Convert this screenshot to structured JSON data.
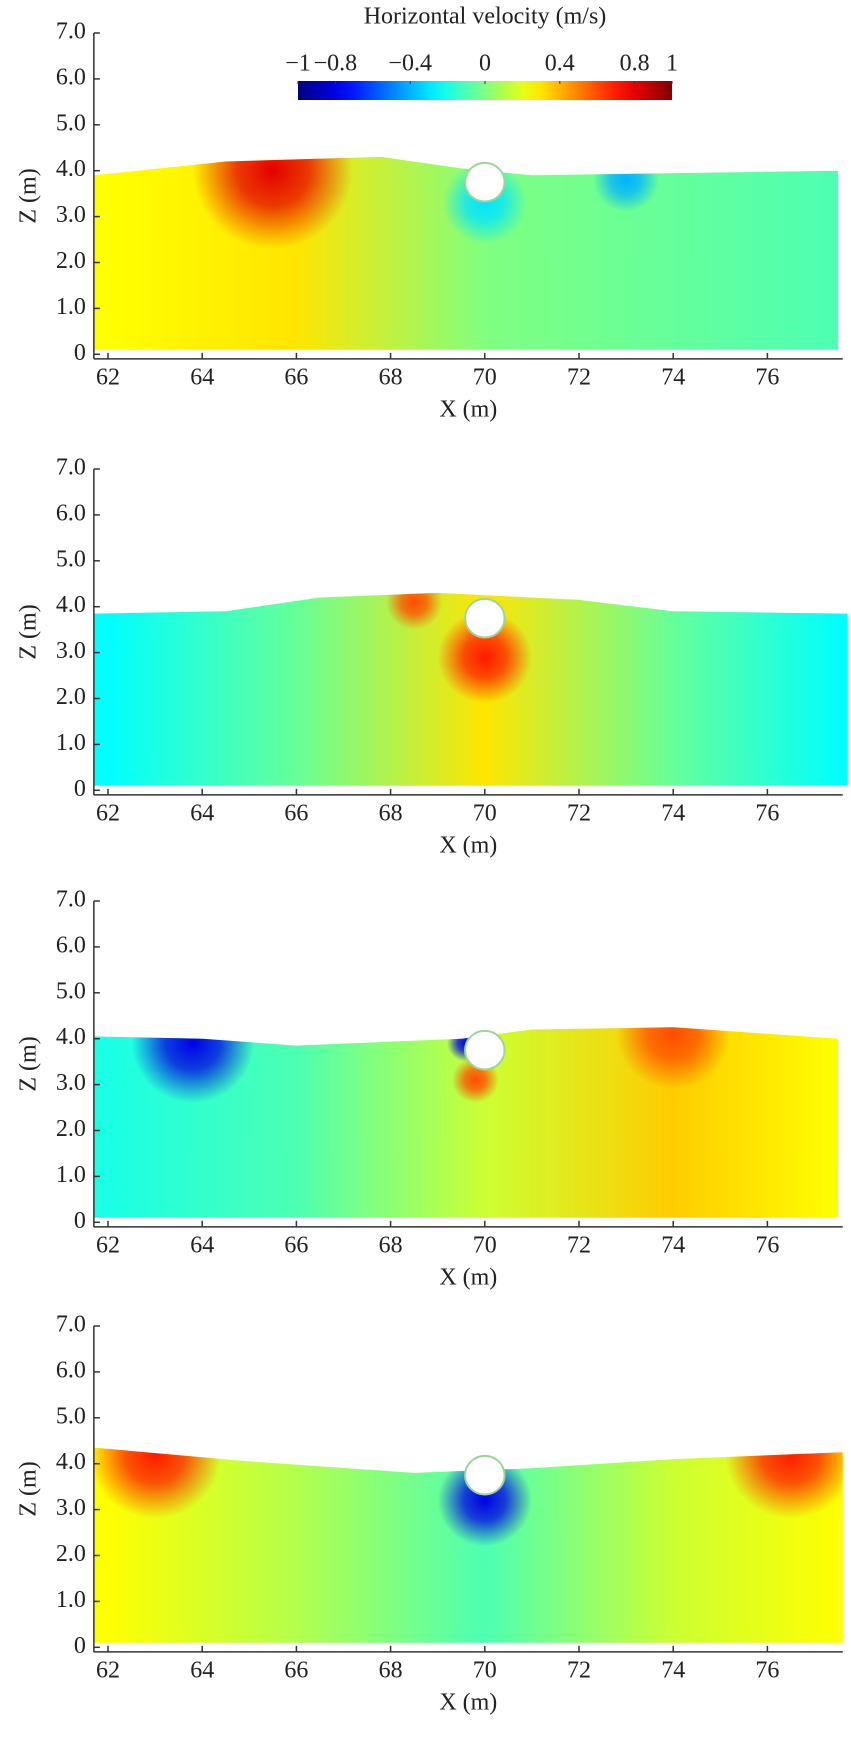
{
  "chart_data": [
    {
      "type": "heatmap",
      "xlabel": "X (m)",
      "ylabel": "Z (m)",
      "colorbar": {
        "label": "Horizontal velocity (m/s)",
        "lim": [
          -1,
          1
        ],
        "ticks": [
          {
            "value": -1,
            "label": "−1"
          },
          {
            "value": -0.8,
            "label": "−0.8"
          },
          {
            "value": -0.4,
            "label": "−0.4"
          },
          0,
          0.4,
          0.8,
          1
        ]
      },
      "xlim": [
        61.7,
        77.6
      ],
      "ylim": [
        -0.1,
        7.0
      ],
      "xticks": [
        62,
        64,
        66,
        68,
        70,
        72,
        74,
        76
      ],
      "yticks": [
        0,
        {
          "value": 1,
          "label": "1.0"
        },
        {
          "value": 2,
          "label": "2.0"
        },
        {
          "value": 3,
          "label": "3.0"
        },
        {
          "value": 4,
          "label": "4.0"
        },
        {
          "value": 5,
          "label": "5.0"
        },
        {
          "value": 6,
          "label": "6.0"
        },
        {
          "value": 7,
          "label": "7.0"
        }
      ],
      "surface": {
        "x": [
          61.7,
          64.5,
          67.8,
          69.5,
          71,
          77.5
        ],
        "values": [
          3.9,
          4.2,
          4.3,
          4.05,
          3.9,
          4.0
        ],
        "bottom": 0.1
      },
      "field": {
        "x": [
          62,
          66,
          70,
          77.5
        ],
        "values": [
          0.25,
          0.3,
          0.0,
          -0.1
        ]
      },
      "blobs": [
        {
          "x": 65.5,
          "z": 4.0,
          "r": 1.7,
          "v": 0.8
        },
        {
          "x": 73,
          "z": 3.8,
          "r": 0.7,
          "v": -0.4
        },
        {
          "x": 70,
          "z": 3.3,
          "r": 0.9,
          "v": -0.3
        }
      ],
      "pipe": {
        "x": 70,
        "z": 3.75,
        "r": 0.42
      }
    },
    {
      "type": "heatmap",
      "xlabel": "X (m)",
      "ylabel": "Z (m)",
      "xlim": [
        61.7,
        77.6
      ],
      "ylim": [
        -0.1,
        7.0
      ],
      "xticks": [
        62,
        64,
        66,
        68,
        70,
        72,
        74,
        76
      ],
      "yticks": [
        0,
        {
          "value": 1,
          "label": "1.0"
        },
        {
          "value": 2,
          "label": "2.0"
        },
        {
          "value": 3,
          "label": "3.0"
        },
        {
          "value": 4,
          "label": "4.0"
        },
        {
          "value": 5,
          "label": "5.0"
        },
        {
          "value": 6,
          "label": "6.0"
        },
        {
          "value": 7,
          "label": "7.0"
        }
      ],
      "surface": {
        "x": [
          61.7,
          64.5,
          66.5,
          69,
          72,
          74,
          77.7
        ],
        "values": [
          3.85,
          3.9,
          4.2,
          4.3,
          4.15,
          3.9,
          3.85
        ],
        "bottom": 0.1
      },
      "field": {
        "x": [
          62,
          66,
          70,
          74,
          77.6
        ],
        "values": [
          -0.25,
          -0.05,
          0.3,
          -0.05,
          -0.25
        ]
      },
      "blobs": [
        {
          "x": 70,
          "z": 2.9,
          "r": 1.0,
          "v": 0.7
        },
        {
          "x": 68.5,
          "z": 4.1,
          "r": 0.6,
          "v": 0.6
        }
      ],
      "pipe": {
        "x": 70,
        "z": 3.75,
        "r": 0.42
      }
    },
    {
      "type": "heatmap",
      "xlabel": "X (m)",
      "ylabel": "Z (m)",
      "xlim": [
        61.7,
        77.6
      ],
      "ylim": [
        -0.1,
        7.0
      ],
      "xticks": [
        62,
        64,
        66,
        68,
        70,
        72,
        74,
        76
      ],
      "yticks": [
        0,
        {
          "value": 1,
          "label": "1.0"
        },
        {
          "value": 2,
          "label": "2.0"
        },
        {
          "value": 3,
          "label": "3.0"
        },
        {
          "value": 4,
          "label": "4.0"
        },
        {
          "value": 5,
          "label": "5.0"
        },
        {
          "value": 6,
          "label": "6.0"
        },
        {
          "value": 7,
          "label": "7.0"
        }
      ],
      "surface": {
        "x": [
          61.7,
          64,
          66,
          69.5,
          71,
          74,
          77.5
        ],
        "values": [
          4.05,
          4.0,
          3.85,
          4.0,
          4.2,
          4.25,
          4.0
        ],
        "bottom": 0.1
      },
      "field": {
        "x": [
          62,
          66,
          70,
          74,
          77.5
        ],
        "values": [
          -0.2,
          -0.1,
          0.15,
          0.35,
          0.25
        ]
      },
      "blobs": [
        {
          "x": 63.8,
          "z": 3.9,
          "r": 1.3,
          "v": -0.8
        },
        {
          "x": 74,
          "z": 4.1,
          "r": 1.2,
          "v": 0.6
        },
        {
          "x": 69.8,
          "z": 3.1,
          "r": 0.5,
          "v": 0.6
        },
        {
          "x": 69.6,
          "z": 3.9,
          "r": 0.4,
          "v": -0.8
        }
      ],
      "pipe": {
        "x": 70,
        "z": 3.75,
        "r": 0.42
      }
    },
    {
      "type": "heatmap",
      "xlabel": "X (m)",
      "ylabel": "Z (m)",
      "xlim": [
        61.7,
        77.6
      ],
      "ylim": [
        -0.1,
        7.0
      ],
      "xticks": [
        62,
        64,
        66,
        68,
        70,
        72,
        74,
        76
      ],
      "yticks": [
        0,
        {
          "value": 1,
          "label": "1.0"
        },
        {
          "value": 2,
          "label": "2.0"
        },
        {
          "value": 3,
          "label": "3.0"
        },
        {
          "value": 4,
          "label": "4.0"
        },
        {
          "value": 5,
          "label": "5.0"
        },
        {
          "value": 6,
          "label": "6.0"
        },
        {
          "value": 7,
          "label": "7.0"
        }
      ],
      "surface": {
        "x": [
          61.7,
          65,
          68.5,
          71,
          74,
          77.6
        ],
        "values": [
          4.35,
          4.05,
          3.8,
          3.9,
          4.1,
          4.25
        ],
        "bottom": 0.1
      },
      "field": {
        "x": [
          62,
          66,
          70,
          74,
          77.6
        ],
        "values": [
          0.25,
          0.1,
          -0.1,
          0.15,
          0.25
        ]
      },
      "blobs": [
        {
          "x": 63,
          "z": 4.2,
          "r": 1.4,
          "v": 0.7
        },
        {
          "x": 76.5,
          "z": 4.2,
          "r": 1.4,
          "v": 0.7
        },
        {
          "x": 70,
          "z": 3.2,
          "r": 1.0,
          "v": -0.8
        }
      ],
      "pipe": {
        "x": 70,
        "z": 3.75,
        "r": 0.42
      }
    }
  ]
}
